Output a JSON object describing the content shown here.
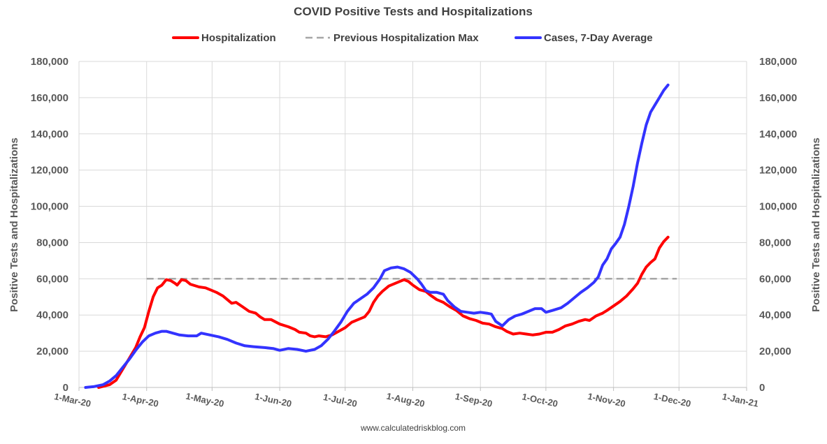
{
  "chart_data": {
    "type": "line",
    "title": "COVID Positive Tests and Hospitalizations",
    "source_text": "www.calculatedriskblog.com",
    "ylabel_left": "Positive Tests and Hospitalizations",
    "ylabel_right": "Positive Tests and Hospitalizations",
    "ylim": [
      0,
      180000
    ],
    "y_ticks": [
      0,
      20000,
      40000,
      60000,
      80000,
      100000,
      120000,
      140000,
      160000,
      180000
    ],
    "y_tick_labels": [
      "0",
      "20,000",
      "40,000",
      "60,000",
      "80,000",
      "100,000",
      "120,000",
      "140,000",
      "160,000",
      "180,000"
    ],
    "xlim": [
      "2020-03-01",
      "2021-01-01"
    ],
    "x_ticks": [
      "2020-03-01",
      "2020-04-01",
      "2020-05-01",
      "2020-06-01",
      "2020-07-01",
      "2020-08-01",
      "2020-09-01",
      "2020-10-01",
      "2020-11-01",
      "2020-12-01",
      "2021-01-01"
    ],
    "x_tick_labels": [
      "1-Mar-20",
      "1-Apr-20",
      "1-May-20",
      "1-Jun-20",
      "1-Jul-20",
      "1-Aug-20",
      "1-Sep-20",
      "1-Oct-20",
      "1-Nov-20",
      "1-Dec-20",
      "1-Jan-21"
    ],
    "grid": true,
    "legend_position": "top",
    "series": [
      {
        "name": "Hospitalization",
        "color": "#ff0000",
        "style": "solid",
        "points": [
          [
            "2020-03-10",
            0
          ],
          [
            "2020-03-15",
            1500
          ],
          [
            "2020-03-18",
            4000
          ],
          [
            "2020-03-21",
            10000
          ],
          [
            "2020-03-24",
            16000
          ],
          [
            "2020-03-27",
            22000
          ],
          [
            "2020-03-29",
            28000
          ],
          [
            "2020-03-31",
            33000
          ],
          [
            "2020-04-02",
            42000
          ],
          [
            "2020-04-04",
            50000
          ],
          [
            "2020-04-06",
            55000
          ],
          [
            "2020-04-08",
            56500
          ],
          [
            "2020-04-10",
            59500
          ],
          [
            "2020-04-12",
            59000
          ],
          [
            "2020-04-14",
            57500
          ],
          [
            "2020-04-15",
            56500
          ],
          [
            "2020-04-17",
            59500
          ],
          [
            "2020-04-19",
            59000
          ],
          [
            "2020-04-21",
            57000
          ],
          [
            "2020-04-25",
            55500
          ],
          [
            "2020-04-28",
            55000
          ],
          [
            "2020-05-01",
            53500
          ],
          [
            "2020-05-03",
            52500
          ],
          [
            "2020-05-06",
            50500
          ],
          [
            "2020-05-08",
            48500
          ],
          [
            "2020-05-10",
            46500
          ],
          [
            "2020-05-12",
            47000
          ],
          [
            "2020-05-15",
            44500
          ],
          [
            "2020-05-18",
            42000
          ],
          [
            "2020-05-21",
            41000
          ],
          [
            "2020-05-23",
            39000
          ],
          [
            "2020-05-25",
            37500
          ],
          [
            "2020-05-28",
            37500
          ],
          [
            "2020-06-01",
            35000
          ],
          [
            "2020-06-05",
            33500
          ],
          [
            "2020-06-08",
            32000
          ],
          [
            "2020-06-10",
            30500
          ],
          [
            "2020-06-13",
            30000
          ],
          [
            "2020-06-15",
            28500
          ],
          [
            "2020-06-17",
            28000
          ],
          [
            "2020-06-19",
            28500
          ],
          [
            "2020-06-22",
            28000
          ],
          [
            "2020-06-25",
            29000
          ],
          [
            "2020-06-28",
            31000
          ],
          [
            "2020-07-01",
            33000
          ],
          [
            "2020-07-04",
            36000
          ],
          [
            "2020-07-07",
            37500
          ],
          [
            "2020-07-10",
            39000
          ],
          [
            "2020-07-12",
            42000
          ],
          [
            "2020-07-14",
            47000
          ],
          [
            "2020-07-16",
            50500
          ],
          [
            "2020-07-18",
            53000
          ],
          [
            "2020-07-21",
            56000
          ],
          [
            "2020-07-24",
            57500
          ],
          [
            "2020-07-26",
            58500
          ],
          [
            "2020-07-28",
            59500
          ],
          [
            "2020-07-30",
            58500
          ],
          [
            "2020-08-01",
            56500
          ],
          [
            "2020-08-04",
            54000
          ],
          [
            "2020-08-07",
            53000
          ],
          [
            "2020-08-09",
            51000
          ],
          [
            "2020-08-12",
            48500
          ],
          [
            "2020-08-15",
            47000
          ],
          [
            "2020-08-18",
            44500
          ],
          [
            "2020-08-21",
            42500
          ],
          [
            "2020-08-24",
            39500
          ],
          [
            "2020-08-27",
            38000
          ],
          [
            "2020-08-30",
            37000
          ],
          [
            "2020-09-02",
            35500
          ],
          [
            "2020-09-05",
            35000
          ],
          [
            "2020-09-08",
            33500
          ],
          [
            "2020-09-11",
            32500
          ],
          [
            "2020-09-13",
            31000
          ],
          [
            "2020-09-16",
            29500
          ],
          [
            "2020-09-19",
            30000
          ],
          [
            "2020-09-22",
            29500
          ],
          [
            "2020-09-25",
            29000
          ],
          [
            "2020-09-28",
            29500
          ],
          [
            "2020-10-01",
            30500
          ],
          [
            "2020-10-04",
            30500
          ],
          [
            "2020-10-07",
            32000
          ],
          [
            "2020-10-10",
            34000
          ],
          [
            "2020-10-13",
            35000
          ],
          [
            "2020-10-16",
            36500
          ],
          [
            "2020-10-19",
            37500
          ],
          [
            "2020-10-21",
            37000
          ],
          [
            "2020-10-24",
            39500
          ],
          [
            "2020-10-27",
            41000
          ],
          [
            "2020-10-29",
            42500
          ],
          [
            "2020-11-01",
            45000
          ],
          [
            "2020-11-04",
            47500
          ],
          [
            "2020-11-07",
            50500
          ],
          [
            "2020-11-10",
            54500
          ],
          [
            "2020-11-12",
            57500
          ],
          [
            "2020-11-14",
            62500
          ],
          [
            "2020-11-16",
            66500
          ],
          [
            "2020-11-18",
            69000
          ],
          [
            "2020-11-20",
            71000
          ],
          [
            "2020-11-22",
            77000
          ],
          [
            "2020-11-24",
            80500
          ],
          [
            "2020-11-26",
            83000
          ]
        ]
      },
      {
        "name": "Previous Hospitalization Max",
        "color": "#a6a6a6",
        "style": "dashed",
        "points": [
          [
            "2020-04-01",
            60000
          ],
          [
            "2020-11-30",
            60000
          ]
        ]
      },
      {
        "name": "Cases, 7-Day Average",
        "color": "#3333ff",
        "style": "solid",
        "points": [
          [
            "2020-03-04",
            0
          ],
          [
            "2020-03-08",
            500
          ],
          [
            "2020-03-12",
            1500
          ],
          [
            "2020-03-15",
            3500
          ],
          [
            "2020-03-18",
            6500
          ],
          [
            "2020-03-21",
            11000
          ],
          [
            "2020-03-24",
            15500
          ],
          [
            "2020-03-27",
            20500
          ],
          [
            "2020-03-30",
            25000
          ],
          [
            "2020-04-02",
            28500
          ],
          [
            "2020-04-05",
            30000
          ],
          [
            "2020-04-08",
            31000
          ],
          [
            "2020-04-10",
            31000
          ],
          [
            "2020-04-13",
            30000
          ],
          [
            "2020-04-16",
            29000
          ],
          [
            "2020-04-20",
            28500
          ],
          [
            "2020-04-24",
            28500
          ],
          [
            "2020-04-26",
            30000
          ],
          [
            "2020-04-30",
            29000
          ],
          [
            "2020-05-04",
            28000
          ],
          [
            "2020-05-08",
            26500
          ],
          [
            "2020-05-12",
            24500
          ],
          [
            "2020-05-16",
            23000
          ],
          [
            "2020-05-20",
            22500
          ],
          [
            "2020-05-25",
            22000
          ],
          [
            "2020-05-29",
            21500
          ],
          [
            "2020-06-01",
            20500
          ],
          [
            "2020-06-05",
            21500
          ],
          [
            "2020-06-09",
            21000
          ],
          [
            "2020-06-13",
            20000
          ],
          [
            "2020-06-17",
            21000
          ],
          [
            "2020-06-20",
            23000
          ],
          [
            "2020-06-23",
            26500
          ],
          [
            "2020-06-26",
            31000
          ],
          [
            "2020-06-29",
            36000
          ],
          [
            "2020-07-02",
            42000
          ],
          [
            "2020-07-05",
            46500
          ],
          [
            "2020-07-08",
            49000
          ],
          [
            "2020-07-11",
            51500
          ],
          [
            "2020-07-14",
            55000
          ],
          [
            "2020-07-17",
            60000
          ],
          [
            "2020-07-19",
            64500
          ],
          [
            "2020-07-22",
            66000
          ],
          [
            "2020-07-25",
            66500
          ],
          [
            "2020-07-28",
            65500
          ],
          [
            "2020-07-31",
            63500
          ],
          [
            "2020-08-03",
            60000
          ],
          [
            "2020-08-05",
            57000
          ],
          [
            "2020-08-07",
            53500
          ],
          [
            "2020-08-09",
            52500
          ],
          [
            "2020-08-12",
            52500
          ],
          [
            "2020-08-15",
            51500
          ],
          [
            "2020-08-17",
            48000
          ],
          [
            "2020-08-20",
            44500
          ],
          [
            "2020-08-23",
            42000
          ],
          [
            "2020-08-26",
            41500
          ],
          [
            "2020-08-29",
            41000
          ],
          [
            "2020-09-01",
            41500
          ],
          [
            "2020-09-04",
            41000
          ],
          [
            "2020-09-06",
            40500
          ],
          [
            "2020-09-08",
            36500
          ],
          [
            "2020-09-11",
            34000
          ],
          [
            "2020-09-14",
            37500
          ],
          [
            "2020-09-17",
            39500
          ],
          [
            "2020-09-20",
            40500
          ],
          [
            "2020-09-23",
            42000
          ],
          [
            "2020-09-26",
            43500
          ],
          [
            "2020-09-29",
            43500
          ],
          [
            "2020-10-01",
            41500
          ],
          [
            "2020-10-04",
            42500
          ],
          [
            "2020-10-08",
            44000
          ],
          [
            "2020-10-11",
            46500
          ],
          [
            "2020-10-14",
            49500
          ],
          [
            "2020-10-17",
            52500
          ],
          [
            "2020-10-20",
            55000
          ],
          [
            "2020-10-23",
            58000
          ],
          [
            "2020-10-25",
            61000
          ],
          [
            "2020-10-27",
            67500
          ],
          [
            "2020-10-29",
            71000
          ],
          [
            "2020-10-31",
            76500
          ],
          [
            "2020-11-02",
            79500
          ],
          [
            "2020-11-04",
            83000
          ],
          [
            "2020-11-06",
            90000
          ],
          [
            "2020-11-08",
            100000
          ],
          [
            "2020-11-10",
            111000
          ],
          [
            "2020-11-12",
            124000
          ],
          [
            "2020-11-14",
            135000
          ],
          [
            "2020-11-16",
            145000
          ],
          [
            "2020-11-18",
            152000
          ],
          [
            "2020-11-20",
            156000
          ],
          [
            "2020-11-22",
            160000
          ],
          [
            "2020-11-24",
            164000
          ],
          [
            "2020-11-26",
            167000
          ]
        ]
      }
    ]
  }
}
